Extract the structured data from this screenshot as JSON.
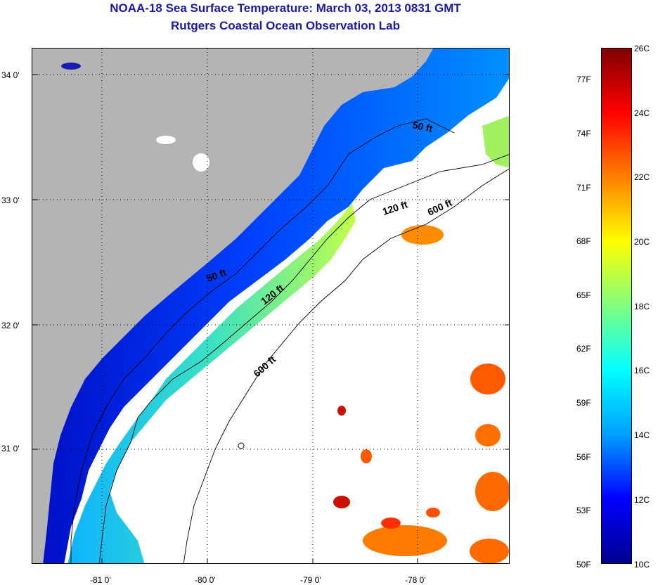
{
  "title": {
    "line1": "NOAA-18 Sea Surface Temperature:  March 03, 2013 0831 GMT",
    "line2": "Rutgers Coastal Ocean Observation Lab"
  },
  "map": {
    "lat_labels": [
      "34 0'",
      "33 0'",
      "32 0'",
      "31 0'"
    ],
    "lon_labels": [
      "-81 0'",
      "-80 0'",
      "-79 0'",
      "-78 0'"
    ],
    "contour_labels": {
      "c50_north": "50 ft",
      "c50_south": "50 ft",
      "c120_north": "120 ft",
      "c120_south": "120 ft",
      "c600_north": "600 ft",
      "c600_south": "600 ft"
    }
  },
  "colorbar": {
    "fahrenheit": [
      "77F",
      "74F",
      "71F",
      "68F",
      "65F",
      "62F",
      "59F",
      "56F",
      "53F",
      "50F"
    ],
    "celsius": [
      "26C",
      "24C",
      "22C",
      "20C",
      "18C",
      "16C",
      "14C",
      "12C",
      "10C"
    ],
    "colors": [
      "#00008f",
      "#0000ff",
      "#00a0ff",
      "#00ffff",
      "#80ff80",
      "#ffff00",
      "#ff8000",
      "#ff0000",
      "#800000"
    ]
  },
  "colors": {
    "land": "#b4b4b4",
    "title": "#1a1aa6"
  }
}
